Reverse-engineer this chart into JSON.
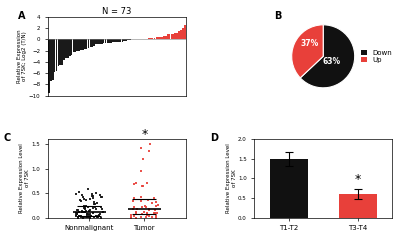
{
  "title_A": "N = 73",
  "n_down": 46,
  "n_up": 27,
  "n_total": 73,
  "pct_down": 63,
  "pct_up": 37,
  "pie_colors": [
    "#111111",
    "#e8403a"
  ],
  "legend_labels": [
    "Down",
    "Up"
  ],
  "bar_A_color_down": "#1a1a1a",
  "bar_A_color_up": "#e8403a",
  "ylabel_A": "Relative Expression\nof 7SK; Log2 (T/N)",
  "ylim_A": [
    -10,
    4
  ],
  "yticks_A": [
    -10,
    -8,
    -6,
    -4,
    -2,
    0,
    2,
    4
  ],
  "label_A": "A",
  "label_B": "B",
  "label_C": "C",
  "label_D": "D",
  "ylabel_C": "Relative Expression Level\nof 7SK",
  "ylim_C": [
    0,
    1.6
  ],
  "yticks_C": [
    0.0,
    0.5,
    1.0,
    1.5
  ],
  "xticklabels_C": [
    "Nonmalignant",
    "Tumor"
  ],
  "ylabel_D": "Relative Expression Level\nof 7SK",
  "ylim_D": [
    0,
    2.0
  ],
  "yticks_D": [
    0.0,
    0.5,
    1.0,
    1.5,
    2.0
  ],
  "xticklabels_D": [
    "T1-T2",
    "T3-T4"
  ],
  "bar_D_values": [
    1.5,
    0.6
  ],
  "bar_D_errors": [
    0.18,
    0.13
  ],
  "bar_D_colors": [
    "#111111",
    "#e8403a"
  ],
  "dot_color_black": "#111111",
  "dot_color_red": "#e8403a",
  "background_color": "#ffffff"
}
